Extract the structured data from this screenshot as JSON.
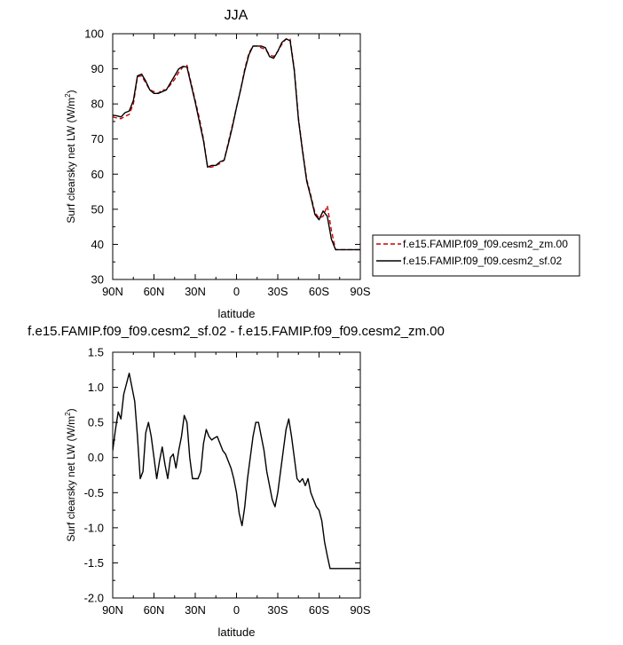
{
  "chart_data": [
    {
      "type": "line",
      "title": "JJA",
      "xlabel": "latitude",
      "ylabel": "Surf clearsky net LW (W/m²)",
      "ylabel_main": "Surf clearsky net LW (W/m",
      "ylabel_sup": "2",
      "ylabel_tail": ")",
      "xlim": [
        90,
        -90
      ],
      "ylim": [
        30,
        100
      ],
      "xticks": [
        90,
        60,
        30,
        0,
        -30,
        -60,
        -90
      ],
      "xtick_labels": [
        "90N",
        "60N",
        "30N",
        "0",
        "30S",
        "60S",
        "90S"
      ],
      "yticks": [
        30,
        40,
        50,
        60,
        70,
        80,
        90,
        100
      ],
      "ytick_labels": [
        "30",
        "40",
        "50",
        "60",
        "70",
        "80",
        "90",
        "100"
      ],
      "legend_position": "right",
      "series": [
        {
          "name": "f.e15.FAMIP.f09_f09.cesm2_zm.00",
          "color": "#cc0000",
          "dashed": true,
          "x": [
            90,
            87,
            84,
            81,
            78,
            75,
            72,
            69,
            66,
            63,
            60,
            57,
            54,
            51,
            48,
            45,
            42,
            39,
            36,
            33,
            30,
            27,
            24,
            21,
            18,
            15,
            12,
            9,
            6,
            3,
            0,
            -3,
            -6,
            -9,
            -12,
            -15,
            -18,
            -21,
            -24,
            -27,
            -30,
            -33,
            -36,
            -39,
            -42,
            -45,
            -48,
            -51,
            -54,
            -57,
            -60,
            -63,
            -66,
            -69,
            -72,
            -75,
            -78,
            -81,
            -84,
            -87,
            -90
          ],
          "y": [
            76.3,
            76,
            75.8,
            76.5,
            77,
            80,
            87.8,
            88,
            86,
            84,
            83.5,
            83,
            84,
            84,
            85.5,
            87,
            89,
            90.5,
            91,
            86,
            81,
            76,
            70,
            62,
            62,
            62.5,
            63,
            64,
            69,
            74,
            79,
            84,
            90,
            94.5,
            96.5,
            96.5,
            96,
            95.5,
            94,
            93.5,
            95,
            97,
            98.5,
            98.5,
            90,
            76,
            67,
            58.5,
            54,
            49,
            47.5,
            48,
            51,
            44,
            38.5,
            38.5,
            38.5,
            38.5,
            38.5,
            38.5,
            38.5
          ]
        },
        {
          "name": "f.e15.FAMIP.f09_f09.cesm2_sf.02",
          "color": "#000000",
          "dashed": false,
          "x": [
            90,
            87,
            84,
            81,
            78,
            75,
            72,
            69,
            66,
            63,
            60,
            57,
            54,
            51,
            48,
            45,
            42,
            39,
            36,
            33,
            30,
            27,
            24,
            21,
            18,
            15,
            12,
            9,
            6,
            3,
            0,
            -3,
            -6,
            -9,
            -12,
            -15,
            -18,
            -21,
            -24,
            -27,
            -30,
            -33,
            -36,
            -39,
            -42,
            -45,
            -48,
            -51,
            -54,
            -57,
            -60,
            -63,
            -66,
            -69,
            -72,
            -75,
            -78,
            -81,
            -84,
            -87,
            -90
          ],
          "y": [
            76.8,
            76.6,
            76.3,
            77.5,
            78,
            81,
            88,
            88.5,
            86.5,
            84,
            83,
            83,
            83.5,
            84,
            86,
            88,
            90,
            90.7,
            90.5,
            85.5,
            80.5,
            75,
            69.5,
            62,
            62.5,
            62.5,
            63.5,
            64,
            68.5,
            73.5,
            79,
            84,
            89.5,
            94,
            96.5,
            96.5,
            96.5,
            96,
            93.5,
            93,
            95,
            97.5,
            98.5,
            98,
            89.5,
            75.5,
            66.5,
            58,
            53.5,
            48.5,
            47,
            49.5,
            48,
            41.5,
            38.5,
            38.5,
            38.5,
            38.5,
            38.5,
            38.5,
            38.5
          ]
        }
      ]
    },
    {
      "type": "line",
      "title": "f.e15.FAMIP.f09_f09.cesm2_sf.02 - f.e15.FAMIP.f09_f09.cesm2_zm.00",
      "xlabel": "latitude",
      "ylabel": "Surf clearsky net LW (W/m²)",
      "ylabel_main": "Surf clearsky net LW (W/m",
      "ylabel_sup": "2",
      "ylabel_tail": ")",
      "xlim": [
        90,
        -90
      ],
      "ylim": [
        -2.0,
        1.5
      ],
      "xticks": [
        90,
        60,
        30,
        0,
        -30,
        -60,
        -90
      ],
      "xtick_labels": [
        "90N",
        "60N",
        "30N",
        "0",
        "30S",
        "60S",
        "90S"
      ],
      "yticks": [
        -2.0,
        -1.5,
        -1.0,
        -0.5,
        0.0,
        0.5,
        1.0,
        1.5
      ],
      "ytick_labels": [
        "-2.0",
        "-1.5",
        "-1.0",
        "-0.5",
        "0.0",
        "0.5",
        "1.0",
        "1.5"
      ],
      "series": [
        {
          "color": "#000000",
          "x": [
            90,
            88,
            86,
            84,
            82,
            80,
            78,
            76,
            74,
            72,
            70,
            68,
            66,
            64,
            62,
            60,
            58,
            56,
            54,
            52,
            50,
            48,
            46,
            44,
            42,
            40,
            38,
            36,
            34,
            32,
            30,
            28,
            26,
            24,
            22,
            20,
            18,
            16,
            14,
            12,
            10,
            8,
            6,
            4,
            2,
            0,
            -2,
            -4,
            -6,
            -8,
            -10,
            -12,
            -14,
            -16,
            -18,
            -20,
            -22,
            -24,
            -26,
            -28,
            -30,
            -32,
            -34,
            -36,
            -38,
            -40,
            -42,
            -44,
            -46,
            -48,
            -50,
            -52,
            -54,
            -56,
            -58,
            -60,
            -62,
            -64,
            -66,
            -68,
            -70,
            -72,
            -74,
            -76,
            -78,
            -80,
            -82,
            -84,
            -86,
            -88,
            -90
          ],
          "y": [
            0.1,
            0.4,
            0.65,
            0.55,
            0.9,
            1.05,
            1.2,
            1.0,
            0.8,
            0.3,
            -0.3,
            -0.2,
            0.35,
            0.5,
            0.3,
            0.0,
            -0.3,
            -0.05,
            0.15,
            -0.1,
            -0.3,
            0.0,
            0.05,
            -0.15,
            0.1,
            0.3,
            0.6,
            0.5,
            0.0,
            -0.3,
            -0.3,
            -0.3,
            -0.2,
            0.2,
            0.4,
            0.3,
            0.25,
            0.28,
            0.3,
            0.2,
            0.1,
            0.05,
            -0.05,
            -0.15,
            -0.3,
            -0.5,
            -0.8,
            -0.97,
            -0.7,
            -0.3,
            0.0,
            0.3,
            0.5,
            0.5,
            0.3,
            0.1,
            -0.2,
            -0.4,
            -0.6,
            -0.7,
            -0.5,
            -0.2,
            0.1,
            0.4,
            0.55,
            0.3,
            0.0,
            -0.3,
            -0.35,
            -0.3,
            -0.4,
            -0.3,
            -0.5,
            -0.6,
            -0.7,
            -0.75,
            -0.9,
            -1.2,
            -1.4,
            -1.58,
            -1.58,
            -1.58,
            -1.58,
            -1.58,
            -1.58,
            -1.58,
            -1.58,
            -1.58,
            -1.58,
            -1.58,
            -1.58
          ]
        }
      ]
    }
  ]
}
